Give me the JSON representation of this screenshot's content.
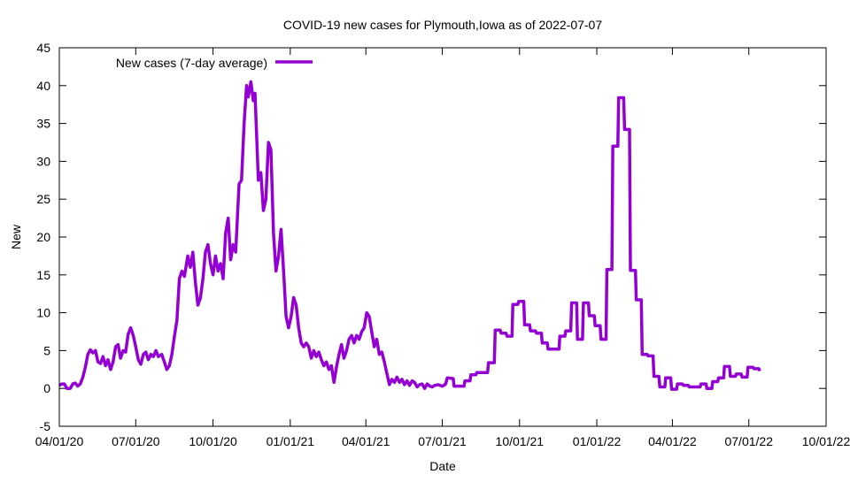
{
  "chart_data": {
    "type": "line",
    "title": "COVID-19 new cases for Plymouth,Iowa as of 2022-07-07",
    "xlabel": "Date",
    "ylabel": "New",
    "xlim": [
      "2020-04-01",
      "2022-10-01"
    ],
    "ylim": [
      -5,
      45
    ],
    "grid": false,
    "legend_position": "top-left",
    "y_ticks": [
      -5,
      0,
      5,
      10,
      15,
      20,
      25,
      30,
      35,
      40,
      45
    ],
    "x_ticks": [
      {
        "date": "2020-04-01",
        "label": "04/01/20"
      },
      {
        "date": "2020-07-01",
        "label": "07/01/20"
      },
      {
        "date": "2020-10-01",
        "label": "10/01/20"
      },
      {
        "date": "2021-01-01",
        "label": "01/01/21"
      },
      {
        "date": "2021-04-01",
        "label": "04/01/21"
      },
      {
        "date": "2021-07-01",
        "label": "07/01/21"
      },
      {
        "date": "2021-10-01",
        "label": "10/01/21"
      },
      {
        "date": "2022-01-01",
        "label": "01/01/22"
      },
      {
        "date": "2022-04-01",
        "label": "04/01/22"
      },
      {
        "date": "2022-07-01",
        "label": "07/01/22"
      },
      {
        "date": "2022-10-01",
        "label": "10/01/22"
      }
    ],
    "series": [
      {
        "name": "New cases (7-day average)",
        "color": "#9400d3",
        "points": [
          [
            "2020-04-01",
            0.4
          ],
          [
            "2020-04-04",
            0.6
          ],
          [
            "2020-04-07",
            0.6
          ],
          [
            "2020-04-10",
            0.0
          ],
          [
            "2020-04-14",
            0.0
          ],
          [
            "2020-04-17",
            0.6
          ],
          [
            "2020-04-20",
            0.7
          ],
          [
            "2020-04-23",
            0.3
          ],
          [
            "2020-04-26",
            0.6
          ],
          [
            "2020-04-29",
            1.5
          ],
          [
            "2020-05-02",
            2.8
          ],
          [
            "2020-05-05",
            4.5
          ],
          [
            "2020-05-08",
            5.1
          ],
          [
            "2020-05-11",
            4.7
          ],
          [
            "2020-05-14",
            5.0
          ],
          [
            "2020-05-17",
            3.5
          ],
          [
            "2020-05-20",
            3.3
          ],
          [
            "2020-05-23",
            4.2
          ],
          [
            "2020-05-26",
            3.0
          ],
          [
            "2020-05-29",
            3.8
          ],
          [
            "2020-06-01",
            2.5
          ],
          [
            "2020-06-04",
            3.5
          ],
          [
            "2020-06-07",
            5.5
          ],
          [
            "2020-06-10",
            5.8
          ],
          [
            "2020-06-13",
            4.0
          ],
          [
            "2020-06-16",
            5.0
          ],
          [
            "2020-06-19",
            4.8
          ],
          [
            "2020-06-22",
            7.2
          ],
          [
            "2020-06-25",
            8.0
          ],
          [
            "2020-06-28",
            7.0
          ],
          [
            "2020-07-01",
            5.5
          ],
          [
            "2020-07-04",
            3.8
          ],
          [
            "2020-07-07",
            3.2
          ],
          [
            "2020-07-10",
            4.5
          ],
          [
            "2020-07-13",
            4.8
          ],
          [
            "2020-07-16",
            3.8
          ],
          [
            "2020-07-19",
            4.5
          ],
          [
            "2020-07-22",
            4.2
          ],
          [
            "2020-07-25",
            5.0
          ],
          [
            "2020-07-28",
            4.2
          ],
          [
            "2020-08-01",
            4.5
          ],
          [
            "2020-08-04",
            3.5
          ],
          [
            "2020-08-07",
            2.5
          ],
          [
            "2020-08-10",
            3.0
          ],
          [
            "2020-08-13",
            4.5
          ],
          [
            "2020-08-16",
            6.8
          ],
          [
            "2020-08-19",
            9.0
          ],
          [
            "2020-08-22",
            14.5
          ],
          [
            "2020-08-25",
            15.5
          ],
          [
            "2020-08-28",
            14.8
          ],
          [
            "2020-09-01",
            17.5
          ],
          [
            "2020-09-04",
            16.0
          ],
          [
            "2020-09-07",
            18.0
          ],
          [
            "2020-09-10",
            14.0
          ],
          [
            "2020-09-13",
            11.0
          ],
          [
            "2020-09-16",
            12.0
          ],
          [
            "2020-09-19",
            14.5
          ],
          [
            "2020-09-22",
            18.0
          ],
          [
            "2020-09-25",
            19.0
          ],
          [
            "2020-09-28",
            16.5
          ],
          [
            "2020-10-01",
            15.0
          ],
          [
            "2020-10-04",
            17.5
          ],
          [
            "2020-10-07",
            15.5
          ],
          [
            "2020-10-10",
            16.5
          ],
          [
            "2020-10-13",
            14.5
          ],
          [
            "2020-10-16",
            20.5
          ],
          [
            "2020-10-19",
            22.5
          ],
          [
            "2020-10-22",
            17.0
          ],
          [
            "2020-10-25",
            19.0
          ],
          [
            "2020-10-28",
            18.0
          ],
          [
            "2020-11-01",
            27.0
          ],
          [
            "2020-11-04",
            27.5
          ],
          [
            "2020-11-07",
            35.0
          ],
          [
            "2020-11-10",
            40.0
          ],
          [
            "2020-11-12",
            38.5
          ],
          [
            "2020-11-15",
            40.5
          ],
          [
            "2020-11-18",
            38.0
          ],
          [
            "2020-11-20",
            39.0
          ],
          [
            "2020-11-24",
            27.5
          ],
          [
            "2020-11-27",
            28.5
          ],
          [
            "2020-11-30",
            23.5
          ],
          [
            "2020-12-03",
            25.0
          ],
          [
            "2020-12-06",
            32.5
          ],
          [
            "2020-12-09",
            31.5
          ],
          [
            "2020-12-12",
            20.5
          ],
          [
            "2020-12-15",
            15.5
          ],
          [
            "2020-12-18",
            17.5
          ],
          [
            "2020-12-21",
            21.0
          ],
          [
            "2020-12-24",
            15.5
          ],
          [
            "2020-12-27",
            9.5
          ],
          [
            "2020-12-30",
            8.0
          ],
          [
            "2021-01-02",
            9.5
          ],
          [
            "2021-01-05",
            12.0
          ],
          [
            "2021-01-08",
            11.0
          ],
          [
            "2021-01-11",
            8.0
          ],
          [
            "2021-01-14",
            6.0
          ],
          [
            "2021-01-17",
            5.5
          ],
          [
            "2021-01-20",
            6.0
          ],
          [
            "2021-01-23",
            5.5
          ],
          [
            "2021-01-26",
            4.0
          ],
          [
            "2021-01-29",
            5.0
          ],
          [
            "2021-02-01",
            4.2
          ],
          [
            "2021-02-04",
            4.8
          ],
          [
            "2021-02-07",
            3.8
          ],
          [
            "2021-02-10",
            3.0
          ],
          [
            "2021-02-13",
            3.5
          ],
          [
            "2021-02-16",
            2.5
          ],
          [
            "2021-02-19",
            3.0
          ],
          [
            "2021-02-22",
            0.8
          ],
          [
            "2021-02-25",
            2.8
          ],
          [
            "2021-02-28",
            4.5
          ],
          [
            "2021-03-03",
            5.8
          ],
          [
            "2021-03-06",
            4.0
          ],
          [
            "2021-03-09",
            5.0
          ],
          [
            "2021-03-12",
            6.5
          ],
          [
            "2021-03-15",
            7.0
          ],
          [
            "2021-03-18",
            6.0
          ],
          [
            "2021-03-21",
            7.0
          ],
          [
            "2021-03-24",
            6.5
          ],
          [
            "2021-03-27",
            7.5
          ],
          [
            "2021-03-30",
            8.0
          ],
          [
            "2021-04-02",
            10.0
          ],
          [
            "2021-04-05",
            9.5
          ],
          [
            "2021-04-08",
            7.5
          ],
          [
            "2021-04-11",
            5.5
          ],
          [
            "2021-04-14",
            6.5
          ],
          [
            "2021-04-17",
            4.5
          ],
          [
            "2021-04-20",
            4.8
          ],
          [
            "2021-04-23",
            3.5
          ],
          [
            "2021-04-26",
            2.0
          ],
          [
            "2021-04-29",
            0.5
          ],
          [
            "2021-05-02",
            1.2
          ],
          [
            "2021-05-05",
            0.8
          ],
          [
            "2021-05-08",
            1.5
          ],
          [
            "2021-05-11",
            0.8
          ],
          [
            "2021-05-14",
            1.2
          ],
          [
            "2021-05-17",
            0.5
          ],
          [
            "2021-05-20",
            1.0
          ],
          [
            "2021-05-23",
            0.4
          ],
          [
            "2021-05-26",
            1.0
          ],
          [
            "2021-05-29",
            0.8
          ],
          [
            "2021-06-01",
            0.2
          ],
          [
            "2021-06-04",
            0.5
          ],
          [
            "2021-06-07",
            0.6
          ],
          [
            "2021-06-10",
            0.0
          ],
          [
            "2021-06-13",
            0.6
          ],
          [
            "2021-06-16",
            0.3
          ],
          [
            "2021-06-19",
            0.2
          ],
          [
            "2021-06-22",
            0.4
          ],
          [
            "2021-06-26",
            0.5
          ],
          [
            "2021-07-01",
            0.3
          ],
          [
            "2021-07-03",
            0.4
          ],
          [
            "2021-07-05",
            0.6
          ],
          [
            "2021-07-07",
            1.4
          ],
          [
            "2021-07-14",
            1.3
          ],
          [
            "2021-07-15",
            0.3
          ],
          [
            "2021-07-27",
            0.3
          ],
          [
            "2021-07-28",
            1.0
          ],
          [
            "2021-08-03",
            1.0
          ],
          [
            "2021-08-04",
            1.8
          ],
          [
            "2021-08-10",
            1.8
          ],
          [
            "2021-08-11",
            2.1
          ],
          [
            "2021-08-24",
            2.1
          ],
          [
            "2021-08-25",
            3.4
          ],
          [
            "2021-09-01",
            3.4
          ],
          [
            "2021-09-02",
            7.7
          ],
          [
            "2021-09-08",
            7.7
          ],
          [
            "2021-09-09",
            7.3
          ],
          [
            "2021-09-15",
            7.3
          ],
          [
            "2021-09-16",
            6.9
          ],
          [
            "2021-09-22",
            6.9
          ],
          [
            "2021-09-23",
            11.1
          ],
          [
            "2021-09-29",
            11.1
          ],
          [
            "2021-09-30",
            11.5
          ],
          [
            "2021-10-06",
            11.5
          ],
          [
            "2021-10-07",
            8.4
          ],
          [
            "2021-10-13",
            8.4
          ],
          [
            "2021-10-14",
            7.6
          ],
          [
            "2021-10-20",
            7.6
          ],
          [
            "2021-10-21",
            7.3
          ],
          [
            "2021-10-27",
            7.3
          ],
          [
            "2021-10-28",
            6.0
          ],
          [
            "2021-11-03",
            6.0
          ],
          [
            "2021-11-04",
            5.2
          ],
          [
            "2021-11-17",
            5.2
          ],
          [
            "2021-11-18",
            6.9
          ],
          [
            "2021-11-24",
            6.9
          ],
          [
            "2021-11-25",
            7.6
          ],
          [
            "2021-12-01",
            7.6
          ],
          [
            "2021-12-02",
            11.3
          ],
          [
            "2021-12-08",
            11.3
          ],
          [
            "2021-12-09",
            6.5
          ],
          [
            "2021-12-15",
            6.5
          ],
          [
            "2021-12-16",
            11.3
          ],
          [
            "2021-12-22",
            11.3
          ],
          [
            "2021-12-23",
            9.6
          ],
          [
            "2021-12-29",
            9.6
          ],
          [
            "2021-12-30",
            8.3
          ],
          [
            "2022-01-05",
            8.3
          ],
          [
            "2022-01-06",
            6.5
          ],
          [
            "2022-01-12",
            6.5
          ],
          [
            "2022-01-13",
            15.7
          ],
          [
            "2022-01-19",
            15.7
          ],
          [
            "2022-01-20",
            32.0
          ],
          [
            "2022-01-26",
            32.0
          ],
          [
            "2022-01-27",
            38.4
          ],
          [
            "2022-02-02",
            38.4
          ],
          [
            "2022-02-03",
            34.2
          ],
          [
            "2022-02-09",
            34.2
          ],
          [
            "2022-02-10",
            15.6
          ],
          [
            "2022-02-16",
            15.6
          ],
          [
            "2022-02-17",
            11.7
          ],
          [
            "2022-02-23",
            11.7
          ],
          [
            "2022-02-24",
            4.5
          ],
          [
            "2022-03-02",
            4.5
          ],
          [
            "2022-03-03",
            4.3
          ],
          [
            "2022-03-09",
            4.3
          ],
          [
            "2022-03-10",
            1.6
          ],
          [
            "2022-03-16",
            1.6
          ],
          [
            "2022-03-17",
            0.2
          ],
          [
            "2022-03-23",
            0.2
          ],
          [
            "2022-03-24",
            1.4
          ],
          [
            "2022-03-30",
            1.4
          ],
          [
            "2022-03-31",
            -0.1
          ],
          [
            "2022-04-06",
            -0.1
          ],
          [
            "2022-04-07",
            0.6
          ],
          [
            "2022-04-13",
            0.6
          ],
          [
            "2022-04-14",
            0.4
          ],
          [
            "2022-04-20",
            0.4
          ],
          [
            "2022-04-21",
            0.2
          ],
          [
            "2022-05-04",
            0.2
          ],
          [
            "2022-05-05",
            0.6
          ],
          [
            "2022-05-11",
            0.6
          ],
          [
            "2022-05-12",
            0.0
          ],
          [
            "2022-05-18",
            0.0
          ],
          [
            "2022-05-19",
            0.9
          ],
          [
            "2022-05-25",
            0.9
          ],
          [
            "2022-05-26",
            1.4
          ],
          [
            "2022-06-01",
            1.4
          ],
          [
            "2022-06-02",
            2.9
          ],
          [
            "2022-06-08",
            2.9
          ],
          [
            "2022-06-09",
            1.6
          ],
          [
            "2022-06-15",
            1.6
          ],
          [
            "2022-06-16",
            1.9
          ],
          [
            "2022-06-22",
            1.9
          ],
          [
            "2022-06-23",
            1.5
          ],
          [
            "2022-06-29",
            1.5
          ],
          [
            "2022-06-30",
            2.8
          ],
          [
            "2022-07-06",
            2.8
          ],
          [
            "2022-07-07",
            2.6
          ],
          [
            "2022-07-13",
            2.6
          ],
          [
            "2022-07-14",
            2.3
          ]
        ]
      }
    ]
  }
}
